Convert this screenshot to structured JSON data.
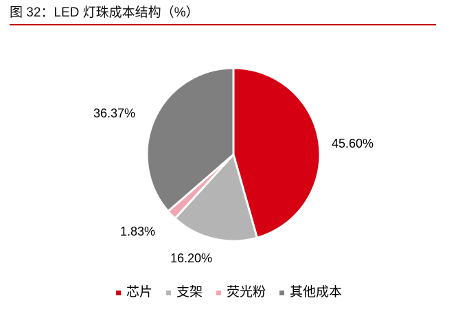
{
  "header": {
    "title": "图 32：LED 灯珠成本结构（%）",
    "rule_color": "#c00000"
  },
  "chart_data": {
    "type": "pie",
    "title": "图 32：LED 灯珠成本结构（%）",
    "categories": [
      "芯片",
      "支架",
      "荧光粉",
      "其他成本"
    ],
    "values": [
      45.6,
      16.2,
      1.83,
      36.37
    ],
    "labels": [
      "45.60%",
      "16.20%",
      "1.83%",
      "36.37%"
    ],
    "colors": [
      "#d50012",
      "#b4b4b4",
      "#f0a6b0",
      "#7f7f7f"
    ],
    "start_angle": "12 o'clock, clockwise",
    "legend_position": "bottom"
  },
  "legend": {
    "items": [
      {
        "label": "芯片",
        "color": "#d50012"
      },
      {
        "label": "支架",
        "color": "#b4b4b4"
      },
      {
        "label": "荧光粉",
        "color": "#f0a6b0"
      },
      {
        "label": "其他成本",
        "color": "#7f7f7f"
      }
    ]
  }
}
